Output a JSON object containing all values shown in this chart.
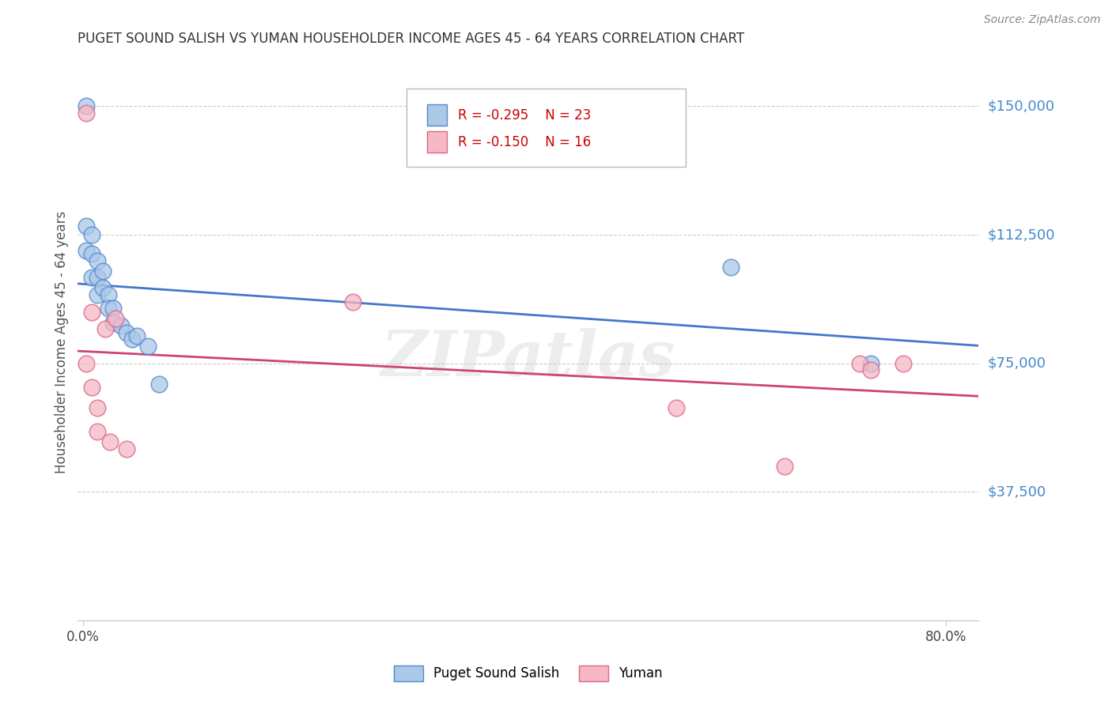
{
  "title": "PUGET SOUND SALISH VS YUMAN HOUSEHOLDER INCOME AGES 45 - 64 YEARS CORRELATION CHART",
  "source": "Source: ZipAtlas.com",
  "ylabel": "Householder Income Ages 45 - 64 years",
  "ytick_labels": [
    "$37,500",
    "$75,000",
    "$112,500",
    "$150,000"
  ],
  "ytick_values": [
    37500,
    75000,
    112500,
    150000
  ],
  "ymin": 0,
  "ymax": 162500,
  "xmin": -0.005,
  "xmax": 0.83,
  "blue_label": "Puget Sound Salish",
  "pink_label": "Yuman",
  "blue_r": "R = -0.295",
  "blue_n": "N = 23",
  "pink_r": "R = -0.150",
  "pink_n": "N = 16",
  "blue_points_x": [
    0.003,
    0.003,
    0.003,
    0.008,
    0.008,
    0.008,
    0.013,
    0.013,
    0.013,
    0.018,
    0.018,
    0.023,
    0.023,
    0.028,
    0.028,
    0.035,
    0.04,
    0.045,
    0.05,
    0.06,
    0.07,
    0.6,
    0.73
  ],
  "blue_points_y": [
    150000,
    115000,
    108000,
    112500,
    107000,
    100000,
    105000,
    100000,
    95000,
    102000,
    97000,
    95000,
    91000,
    91000,
    87000,
    86000,
    84000,
    82000,
    83000,
    80000,
    69000,
    103000,
    75000
  ],
  "pink_points_x": [
    0.003,
    0.003,
    0.008,
    0.008,
    0.013,
    0.013,
    0.02,
    0.025,
    0.03,
    0.04,
    0.25,
    0.55,
    0.65,
    0.72,
    0.73,
    0.76
  ],
  "pink_points_y": [
    148000,
    75000,
    90000,
    68000,
    62000,
    55000,
    85000,
    52000,
    88000,
    50000,
    93000,
    62000,
    45000,
    75000,
    73000,
    75000
  ],
  "watermark": "ZIPatlas",
  "background_color": "#ffffff",
  "grid_color": "#cccccc",
  "blue_color": "#aac8e8",
  "blue_edge_color": "#5588cc",
  "blue_line_color": "#4477cc",
  "pink_color": "#f5b8c4",
  "pink_edge_color": "#dd6688",
  "pink_line_color": "#cc4477",
  "ytick_color": "#4488cc",
  "title_color": "#333333",
  "source_color": "#888888"
}
